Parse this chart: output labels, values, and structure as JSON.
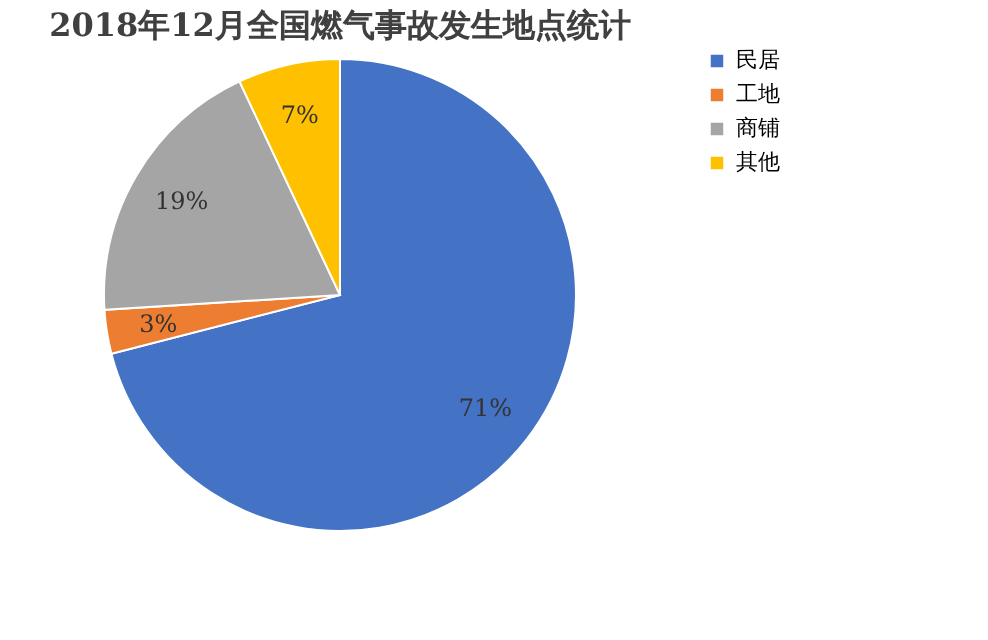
{
  "chart_data": {
    "type": "pie",
    "title": "2018年12月全国燃气事故发生地点统计",
    "categories": [
      "民居",
      "工地",
      "商铺",
      "其他"
    ],
    "values": [
      71,
      3,
      19,
      7
    ],
    "value_labels": [
      "71%",
      "3%",
      "19%",
      "7%"
    ],
    "colors": [
      "#4472c4",
      "#ed7d31",
      "#a5a5a5",
      "#ffc000"
    ],
    "legend": "right"
  }
}
